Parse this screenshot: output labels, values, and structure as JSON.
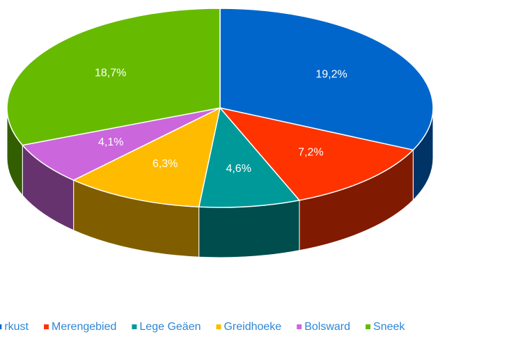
{
  "chart_data": {
    "type": "pie3d",
    "categories": [
      "rkust",
      "Merengebied",
      "Lege Geäen",
      "Greidhoeke",
      "Bolsward",
      "Sneek"
    ],
    "values": [
      19.2,
      7.2,
      4.6,
      6.3,
      4.1,
      18.7
    ],
    "value_labels": [
      "19,2%",
      "7,2%",
      "4,6%",
      "6,3%",
      "4,1%",
      "18,7%"
    ],
    "colors": [
      "#0066cc",
      "#ff3300",
      "#009999",
      "#ffbb00",
      "#cc66dd",
      "#66bb00"
    ],
    "legend": "bottom"
  }
}
